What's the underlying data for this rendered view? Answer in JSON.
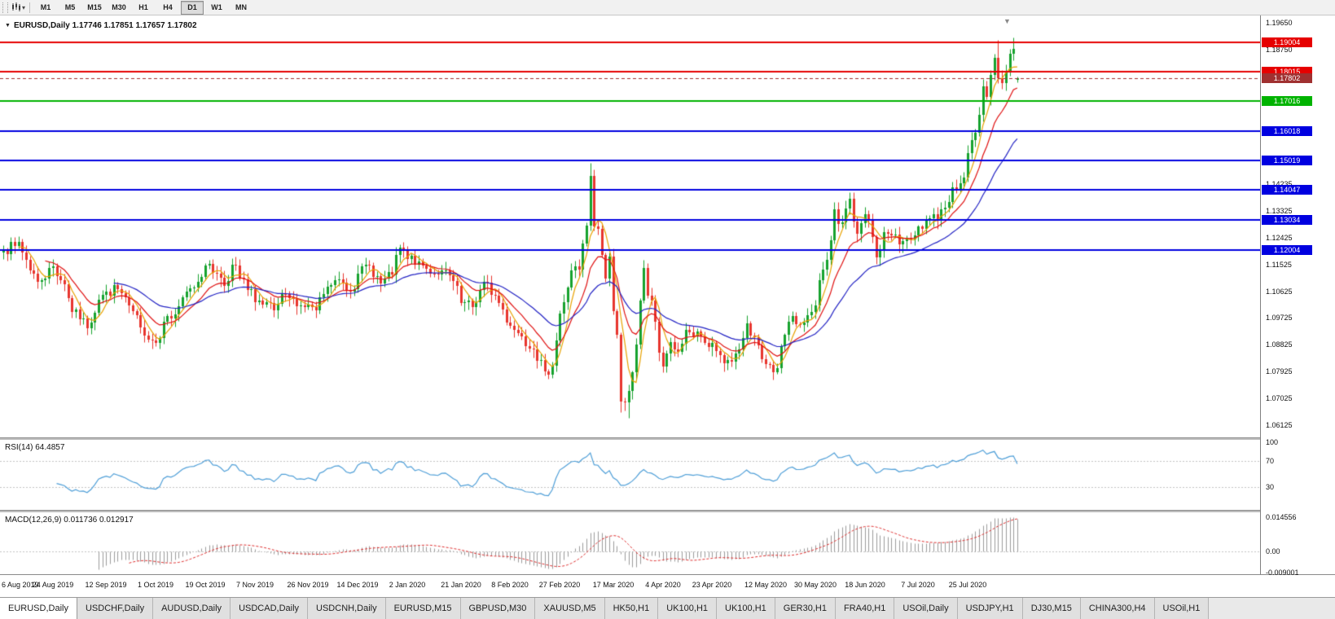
{
  "toolbar": {
    "timeframes": [
      {
        "label": "M1",
        "active": false
      },
      {
        "label": "M5",
        "active": false
      },
      {
        "label": "M15",
        "active": false
      },
      {
        "label": "M30",
        "active": false
      },
      {
        "label": "H1",
        "active": false
      },
      {
        "label": "H4",
        "active": false
      },
      {
        "label": "D1",
        "active": true
      },
      {
        "label": "W1",
        "active": false
      },
      {
        "label": "MN",
        "active": false
      }
    ],
    "icons": {
      "chart_type_icon": "candlestick-chart",
      "dropdown_icon": "chevron-down"
    }
  },
  "chart_header": {
    "title": "EURUSD,Daily 1.17746 1.17851 1.17657 1.17802"
  },
  "chart_data": {
    "type": "candlestick",
    "symbol": "EURUSD",
    "period": "Daily",
    "ohlc_display": {
      "open": "1.17746",
      "high": "1.17851",
      "low": "1.17657",
      "close": "1.17802"
    },
    "ylim": [
      1.0571,
      1.199
    ],
    "colors": {
      "up": "#16a22e",
      "down": "#e8352e",
      "background": "#ffffff"
    },
    "candles": {
      "count": 267,
      "seed": 7,
      "noise": 0.0022,
      "wick_base": 0.0007,
      "wick_rand": 0.0022,
      "anchors": [
        [
          0,
          1.12
        ],
        [
          3,
          1.1215
        ],
        [
          4,
          1.1228
        ],
        [
          6,
          1.1168
        ],
        [
          9,
          1.1095
        ],
        [
          13,
          1.1145
        ],
        [
          16,
          1.1085
        ],
        [
          18,
          1.0992
        ],
        [
          20,
          1.0968
        ],
        [
          22,
          1.0938
        ],
        [
          25,
          1.1035
        ],
        [
          27,
          1.1062
        ],
        [
          30,
          1.107
        ],
        [
          33,
          1.1016
        ],
        [
          36,
          1.094
        ],
        [
          40,
          1.089
        ],
        [
          42,
          1.096
        ],
        [
          45,
          1.0985
        ],
        [
          47,
          1.1042
        ],
        [
          50,
          1.1075
        ],
        [
          53,
          1.1148
        ],
        [
          56,
          1.1122
        ],
        [
          58,
          1.108
        ],
        [
          60,
          1.1152
        ],
        [
          62,
          1.1108
        ],
        [
          64,
          1.1068
        ],
        [
          68,
          1.1018
        ],
        [
          71,
          1.0999
        ],
        [
          74,
          1.1052
        ],
        [
          77,
          1.1012
        ],
        [
          80,
          1.1018
        ],
        [
          82,
          1.0998
        ],
        [
          85,
          1.1078
        ],
        [
          88,
          1.1102
        ],
        [
          91,
          1.1062
        ],
        [
          93,
          1.1122
        ],
        [
          96,
          1.1148
        ],
        [
          99,
          1.1088
        ],
        [
          102,
          1.1118
        ],
        [
          104,
          1.121
        ],
        [
          106,
          1.1172
        ],
        [
          109,
          1.1162
        ],
        [
          112,
          1.1122
        ],
        [
          115,
          1.1132
        ],
        [
          118,
          1.1096
        ],
        [
          120,
          1.1023
        ],
        [
          123,
          1.1008
        ],
        [
          126,
          1.1093
        ],
        [
          129,
          1.1048
        ],
        [
          131,
          1.1
        ],
        [
          133,
          1.0945
        ],
        [
          136,
          1.0912
        ],
        [
          139,
          1.0868
        ],
        [
          142,
          1.0792
        ],
        [
          144,
          1.0812
        ],
        [
          146,
          1.0988
        ],
        [
          147,
          1.1026
        ],
        [
          149,
          1.1133
        ],
        [
          151,
          1.1135
        ],
        [
          153,
          1.1284
        ],
        [
          154,
          1.145
        ],
        [
          155,
          1.128
        ],
        [
          156,
          1.1271
        ],
        [
          157,
          1.1184
        ],
        [
          158,
          1.1105
        ],
        [
          159,
          1.118
        ],
        [
          160,
          1.0995
        ],
        [
          161,
          1.0915
        ],
        [
          162,
          1.0692
        ],
        [
          163,
          1.0688
        ],
        [
          164,
          1.0727
        ],
        [
          165,
          1.0789
        ],
        [
          166,
          1.0883
        ],
        [
          167,
          1.1031
        ],
        [
          168,
          1.114
        ],
        [
          169,
          1.1048
        ],
        [
          170,
          1.1031
        ],
        [
          171,
          1.0961
        ],
        [
          172,
          1.0855
        ],
        [
          173,
          1.0808
        ],
        [
          175,
          1.0892
        ],
        [
          177,
          1.0858
        ],
        [
          179,
          1.0933
        ],
        [
          181,
          1.0912
        ],
        [
          183,
          1.091
        ],
        [
          185,
          1.0875
        ],
        [
          187,
          1.0862
        ],
        [
          189,
          1.082
        ],
        [
          191,
          1.0826
        ],
        [
          193,
          1.0868
        ],
        [
          195,
          1.0955
        ],
        [
          197,
          1.0907
        ],
        [
          199,
          1.0834
        ],
        [
          201,
          1.0815
        ],
        [
          203,
          1.0805
        ],
        [
          205,
          1.0915
        ],
        [
          207,
          1.0978
        ],
        [
          209,
          1.095
        ],
        [
          211,
          1.0983
        ],
        [
          213,
          1.1014
        ],
        [
          214,
          1.1101
        ],
        [
          215,
          1.1134
        ],
        [
          216,
          1.1168
        ],
        [
          217,
          1.1235
        ],
        [
          218,
          1.1338
        ],
        [
          219,
          1.129
        ],
        [
          220,
          1.1295
        ],
        [
          221,
          1.134
        ],
        [
          222,
          1.1373
        ],
        [
          223,
          1.1298
        ],
        [
          224,
          1.1255
        ],
        [
          226,
          1.1322
        ],
        [
          228,
          1.1245
        ],
        [
          229,
          1.1177
        ],
        [
          231,
          1.126
        ],
        [
          233,
          1.125
        ],
        [
          235,
          1.1219
        ],
        [
          237,
          1.1242
        ],
        [
          239,
          1.125
        ],
        [
          241,
          1.1271
        ],
        [
          243,
          1.1308
        ],
        [
          245,
          1.13
        ],
        [
          247,
          1.1344
        ],
        [
          249,
          1.1413
        ],
        [
          251,
          1.1427
        ],
        [
          252,
          1.1446
        ],
        [
          253,
          1.1527
        ],
        [
          254,
          1.1571
        ],
        [
          255,
          1.1596
        ],
        [
          256,
          1.1656
        ],
        [
          257,
          1.1752
        ],
        [
          258,
          1.1716
        ],
        [
          259,
          1.1791
        ],
        [
          260,
          1.1847
        ],
        [
          261,
          1.1778
        ],
        [
          262,
          1.1762
        ],
        [
          263,
          1.1803
        ],
        [
          264,
          1.1862
        ],
        [
          265,
          1.1878
        ],
        [
          266,
          1.178
        ]
      ],
      "overrides": [
        {
          "i": 40,
          "l": 1.0879
        },
        {
          "i": 142,
          "l": 1.0778
        },
        {
          "i": 154,
          "h": 1.1495
        },
        {
          "i": 162,
          "l": 1.0655
        },
        {
          "i": 164,
          "l": 1.0636
        },
        {
          "i": 261,
          "h": 1.1909
        },
        {
          "i": 265,
          "h": 1.1916
        },
        {
          "i": 266,
          "o": 1.17746,
          "h": 1.17851,
          "l": 1.17657,
          "c": 1.17802
        }
      ]
    },
    "moving_averages": [
      {
        "type": "sma",
        "period": 5,
        "color": "#e8a200"
      },
      {
        "type": "ema",
        "period": 12,
        "color": "#e01010"
      },
      {
        "type": "ema",
        "period": 30,
        "color": "#2222c4"
      }
    ],
    "levels": [
      {
        "value": 1.19004,
        "label": "1.19004",
        "color": "#e60000"
      },
      {
        "value": 1.18015,
        "label": "1.18015",
        "color": "#e60000"
      },
      {
        "value": 1.17016,
        "label": "1.17016",
        "color": "#00b300"
      },
      {
        "value": 1.16018,
        "label": "1.16018",
        "color": "#0000e0"
      },
      {
        "value": 1.15019,
        "label": "1.15019",
        "color": "#0000e0"
      },
      {
        "value": 1.14047,
        "label": "1.14047",
        "color": "#0000e0"
      },
      {
        "value": 1.13034,
        "label": "1.13034",
        "color": "#0000e0"
      },
      {
        "value": 1.12004,
        "label": "1.12004",
        "color": "#0000e0"
      }
    ],
    "current_price": {
      "value": 1.17802,
      "label": "1.17802",
      "color": "#a03030"
    },
    "y_ticks": [
      {
        "label": "1.19650",
        "value": 1.1965
      },
      {
        "label": "1.18750",
        "value": 1.1875
      },
      {
        "label": "1.14235",
        "value": 1.14235
      },
      {
        "label": "1.13325",
        "value": 1.13325
      },
      {
        "label": "1.12425",
        "value": 1.12425
      },
      {
        "label": "1.11525",
        "value": 1.11525
      },
      {
        "label": "1.10625",
        "value": 1.10625
      },
      {
        "label": "1.09725",
        "value": 1.09725
      },
      {
        "label": "1.08825",
        "value": 1.08825
      },
      {
        "label": "1.07925",
        "value": 1.07925
      },
      {
        "label": "1.07025",
        "value": 1.07025
      },
      {
        "label": "1.06125",
        "value": 1.06125
      }
    ],
    "x_ticks": [
      {
        "i": 0,
        "label": "6 Aug 2019"
      },
      {
        "i": 13,
        "label": "24 Aug 2019"
      },
      {
        "i": 27,
        "label": "12 Sep 2019"
      },
      {
        "i": 40,
        "label": "1 Oct 2019"
      },
      {
        "i": 53,
        "label": "19 Oct 2019"
      },
      {
        "i": 66,
        "label": "7 Nov 2019"
      },
      {
        "i": 80,
        "label": "26 Nov 2019"
      },
      {
        "i": 93,
        "label": "14 Dec 2019"
      },
      {
        "i": 106,
        "label": "2 Jan 2020"
      },
      {
        "i": 120,
        "label": "21 Jan 2020"
      },
      {
        "i": 133,
        "label": "8 Feb 2020"
      },
      {
        "i": 146,
        "label": "27 Feb 2020"
      },
      {
        "i": 160,
        "label": "17 Mar 2020"
      },
      {
        "i": 173,
        "label": "4 Apr 2020"
      },
      {
        "i": 186,
        "label": "23 Apr 2020"
      },
      {
        "i": 200,
        "label": "12 May 2020"
      },
      {
        "i": 213,
        "label": "30 May 2020"
      },
      {
        "i": 226,
        "label": "18 Jun 2020"
      },
      {
        "i": 240,
        "label": "7 Jul 2020"
      },
      {
        "i": 253,
        "label": "25 Jul 2020"
      }
    ],
    "rsi": {
      "title": "RSI(14)",
      "value": "64.4857",
      "period": 14,
      "color": "#4f9fd8",
      "level_lines": [
        70,
        30
      ],
      "ticks": [
        {
          "label": "100",
          "value": 100
        },
        {
          "label": "70",
          "value": 70
        },
        {
          "label": "30",
          "value": 30
        }
      ]
    },
    "macd": {
      "title": "MACD(12,26,9)",
      "value": "0.011736 0.012917",
      "fast": 12,
      "slow": 26,
      "signal": 9,
      "hist_color": "#9c9c9c",
      "signal_color": "#e03030",
      "ticks": [
        {
          "label": "0.014556",
          "value": 0.014556
        },
        {
          "label": "0.00",
          "value": 0
        },
        {
          "label": "-0.009001",
          "value": -0.009001
        }
      ]
    }
  },
  "tabs": {
    "items": [
      {
        "label": "EURUSD,Daily",
        "active": true
      },
      {
        "label": "USDCHF,Daily"
      },
      {
        "label": "AUDUSD,Daily"
      },
      {
        "label": "USDCAD,Daily"
      },
      {
        "label": "USDCNH,Daily"
      },
      {
        "label": "EURUSD,M15"
      },
      {
        "label": "GBPUSD,M30"
      },
      {
        "label": "XAUUSD,M5"
      },
      {
        "label": "HK50,H1"
      },
      {
        "label": "UK100,H1"
      },
      {
        "label": "UK100,H1"
      },
      {
        "label": "GER30,H1"
      },
      {
        "label": "FRA40,H1"
      },
      {
        "label": "USOil,Daily"
      },
      {
        "label": "USDJPY,H1"
      },
      {
        "label": "DJ30,M15"
      },
      {
        "label": "CHINA300,H4"
      },
      {
        "label": "USOil,H1"
      }
    ]
  }
}
